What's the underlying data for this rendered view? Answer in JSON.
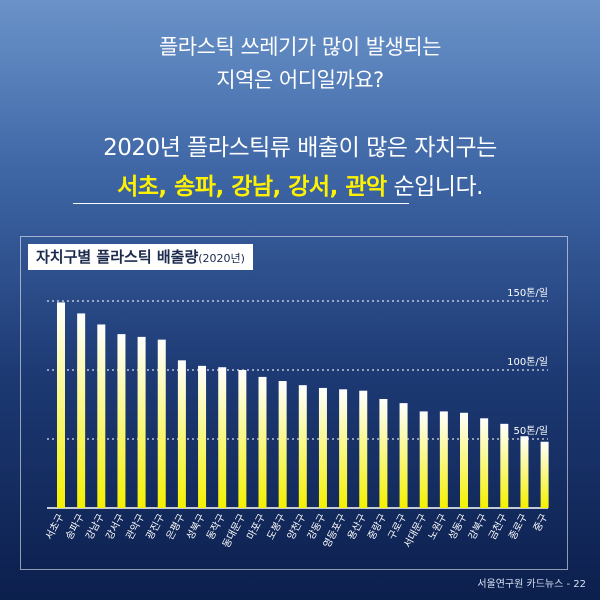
{
  "headline": {
    "question_line1": "플라스틱 쓰레기가 많이 발생되는",
    "question_line2": "지역은 어디일까요?",
    "answer_line1": "2020년 플라스틱류 배출이 많은 자치구는",
    "highlight_districts": "서초, 송파, 강남, 강서, 관악",
    "answer_suffix": " 순입니다."
  },
  "chart_title": {
    "main": "자치구별 플라스틱 배출량",
    "year": "(2020년)"
  },
  "footer": {
    "credit": "서울연구원 카드뉴스 - 22"
  },
  "colors": {
    "highlight": "#fff200",
    "bar_top": "#ffffff",
    "bar_bottom": "#f4f000",
    "gridline": "#ffffff"
  },
  "chart_data": {
    "type": "bar",
    "title": "자치구별 플라스틱 배출량(2020년)",
    "xlabel": "",
    "ylabel": "",
    "unit": "톤/일",
    "ylim": [
      0,
      150
    ],
    "gridlines": [
      50,
      100,
      150
    ],
    "gridline_labels": [
      "50톤/일",
      "100톤/일",
      "150톤/일"
    ],
    "categories": [
      "서초구",
      "송파구",
      "강남구",
      "강서구",
      "관악구",
      "광진구",
      "은평구",
      "성북구",
      "동작구",
      "동대문구",
      "마포구",
      "도봉구",
      "양천구",
      "강동구",
      "영등포구",
      "용산구",
      "중랑구",
      "구로구",
      "서대문구",
      "노원구",
      "성동구",
      "강북구",
      "금천구",
      "종로구",
      "중구"
    ],
    "values": [
      149,
      141,
      133,
      126,
      124,
      122,
      107,
      103,
      102,
      100,
      95,
      92,
      89,
      87,
      86,
      85,
      79,
      76,
      70,
      70,
      69,
      65,
      61,
      52,
      48
    ]
  }
}
